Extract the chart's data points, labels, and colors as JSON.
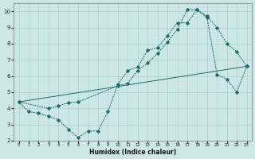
{
  "xlabel": "Humidex (Indice chaleur)",
  "ylabel": "",
  "bg_color": "#cce8e6",
  "grid_color": "#aad0ce",
  "line_color": "#1a6b6b",
  "xlim": [
    -0.5,
    23.5
  ],
  "ylim": [
    2,
    10.5
  ],
  "xticks": [
    0,
    1,
    2,
    3,
    4,
    5,
    6,
    7,
    8,
    9,
    10,
    11,
    12,
    13,
    14,
    15,
    16,
    17,
    18,
    19,
    20,
    21,
    22,
    23
  ],
  "yticks": [
    2,
    3,
    4,
    5,
    6,
    7,
    8,
    9,
    10
  ],
  "line1_x": [
    0,
    1,
    2,
    3,
    4,
    5,
    6,
    7,
    8,
    9,
    10,
    11,
    12,
    13,
    14,
    15,
    16,
    17,
    18,
    19,
    20,
    21,
    22,
    23
  ],
  "line1_y": [
    4.4,
    3.8,
    3.7,
    3.5,
    3.3,
    2.7,
    2.2,
    2.6,
    2.6,
    3.8,
    5.5,
    6.35,
    6.55,
    7.6,
    7.75,
    8.5,
    9.3,
    9.3,
    10.1,
    9.7,
    9.0,
    8.0,
    7.5,
    6.6
  ],
  "line2_x": [
    0,
    3,
    4,
    5,
    6,
    10,
    11,
    12,
    13,
    14,
    15,
    16,
    17,
    18,
    19,
    20,
    21,
    22,
    23
  ],
  "line2_y": [
    4.4,
    4.0,
    4.15,
    4.35,
    4.4,
    5.4,
    5.55,
    6.35,
    6.8,
    7.4,
    8.1,
    8.9,
    10.1,
    10.1,
    9.6,
    6.1,
    5.8,
    5.0,
    6.6
  ],
  "line3_x": [
    0,
    23
  ],
  "line3_y": [
    4.4,
    6.6
  ]
}
